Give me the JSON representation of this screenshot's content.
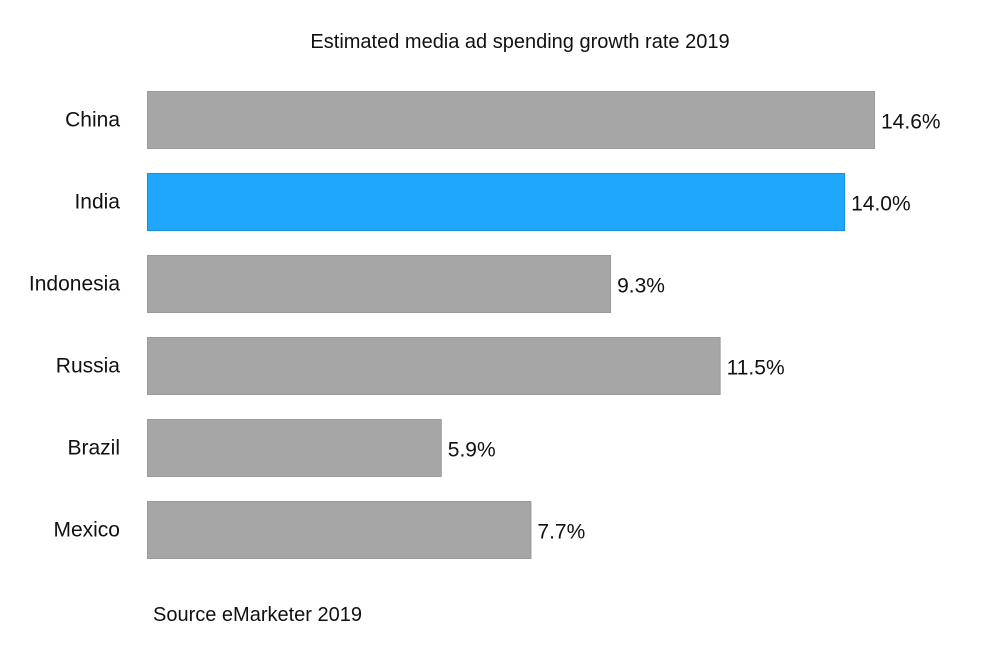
{
  "chart_data": {
    "type": "bar",
    "orientation": "horizontal",
    "title": "Estimated media ad spending growth rate 2019",
    "categories": [
      "China",
      "India",
      "Indonesia",
      "Russia",
      "Brazil",
      "Mexico"
    ],
    "values": [
      14.6,
      14.0,
      9.3,
      11.5,
      5.9,
      7.7
    ],
    "data_labels": [
      "14.6%",
      "14.0%",
      "9.3%",
      "11.5%",
      "5.9%",
      "7.7%"
    ],
    "highlight_category": "India",
    "colors": {
      "default": "#a6a6a6",
      "default_border": "#9a9a9a",
      "highlight": "#1ea7fd",
      "highlight_border": "#1a8fd8"
    },
    "xlim": [
      0,
      14.6
    ],
    "grid": false,
    "axes_visible": false,
    "source_note": "Source eMarketer 2019"
  }
}
